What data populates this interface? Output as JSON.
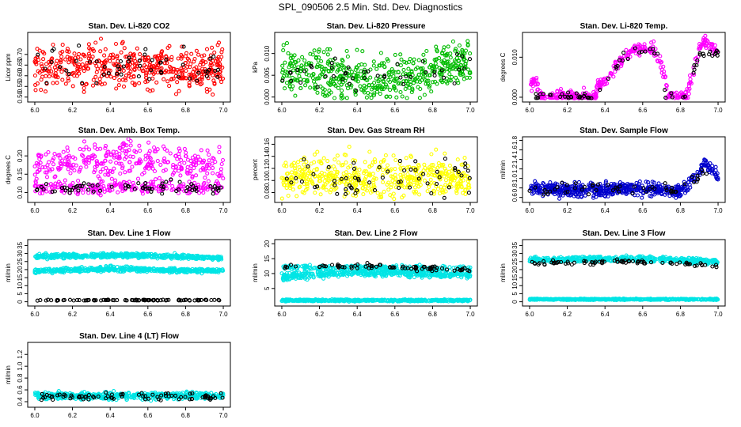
{
  "figure": {
    "title": "SPL_090506  2.5 Min. Std. Dev. Diagnostics"
  },
  "colors": {
    "red": "#ff0000",
    "green": "#00bb00",
    "magenta": "#ff00ff",
    "yellow": "#ffff00",
    "blue": "#0000cc",
    "cyan": "#00e5e5",
    "black": "#000000"
  },
  "chart_data": [
    {
      "type": "scatter",
      "title": "Stan. Dev. Li-820 CO2",
      "ylabel": "Licor ppm",
      "xlim": [
        6.0,
        7.0
      ],
      "ylim": [
        0.49,
        0.79
      ],
      "xticks": [
        "6.0",
        "6.2",
        "6.4",
        "6.6",
        "6.8",
        "7.0"
      ],
      "yticks": [
        "0.50",
        "0.55",
        "0.60",
        "0.65",
        "0.70"
      ],
      "color": "red",
      "profile": [
        [
          6.0,
          0.64
        ],
        [
          7.0,
          0.64
        ]
      ],
      "spread": 0.05,
      "points": 480,
      "black_profile": [
        [
          6.0,
          0.63
        ],
        [
          7.0,
          0.63
        ]
      ],
      "black_spread": 0.045,
      "black_points": 55
    },
    {
      "type": "scatter",
      "title": "Stan. Dev. Li-820 Pressure",
      "ylabel": "kPa",
      "xlim": [
        6.0,
        7.0
      ],
      "ylim": [
        -0.0005,
        0.0142
      ],
      "xticks": [
        "6.0",
        "6.2",
        "6.4",
        "6.6",
        "6.8",
        "7.0"
      ],
      "yticks": [
        "0.000",
        "0.005",
        "0.010"
      ],
      "color": "green",
      "profile": [
        [
          6.0,
          0.006
        ],
        [
          6.3,
          0.005
        ],
        [
          6.5,
          0.0035
        ],
        [
          6.7,
          0.005
        ],
        [
          6.85,
          0.0075
        ],
        [
          7.0,
          0.008
        ]
      ],
      "spread": 0.0026,
      "points": 520,
      "black_profile": [
        [
          6.0,
          0.006
        ],
        [
          6.4,
          0.005
        ],
        [
          6.7,
          0.005
        ],
        [
          7.0,
          0.008
        ]
      ],
      "black_spread": 0.002,
      "black_points": 45
    },
    {
      "type": "scatter",
      "title": "Stan. Dev. Li-820 Temp.",
      "ylabel": "degrees C",
      "xlim": [
        6.0,
        7.0
      ],
      "ylim": [
        -0.0005,
        0.0155
      ],
      "xticks": [
        "6.0",
        "6.2",
        "6.4",
        "6.6",
        "6.8",
        "7.0"
      ],
      "yticks": [
        "0.000",
        "0.010"
      ],
      "color": "magenta",
      "profile": [
        [
          6.0,
          0.0035
        ],
        [
          6.04,
          0.0035
        ],
        [
          6.05,
          0.0
        ],
        [
          6.35,
          0.0
        ],
        [
          6.36,
          0.003
        ],
        [
          6.42,
          0.005
        ],
        [
          6.5,
          0.01
        ],
        [
          6.54,
          0.012
        ],
        [
          6.66,
          0.012
        ],
        [
          6.69,
          0.009
        ],
        [
          6.72,
          0.005
        ],
        [
          6.73,
          0.0
        ],
        [
          6.83,
          0.0
        ],
        [
          6.86,
          0.005
        ],
        [
          6.9,
          0.012
        ],
        [
          6.93,
          0.014
        ],
        [
          7.0,
          0.011
        ]
      ],
      "spread": 0.0008,
      "points": 420,
      "black_profile": [
        [
          6.0,
          0.0
        ],
        [
          6.05,
          0.0
        ],
        [
          6.35,
          0.0
        ],
        [
          6.45,
          0.007
        ],
        [
          6.55,
          0.012
        ],
        [
          6.65,
          0.012
        ],
        [
          6.7,
          0.008
        ],
        [
          6.72,
          0.0
        ],
        [
          6.83,
          0.0
        ],
        [
          6.9,
          0.011
        ],
        [
          7.0,
          0.011
        ]
      ],
      "black_spread": 0.0006,
      "black_points": 70
    },
    {
      "type": "scatter",
      "title": "Stan. Dev. Amb. Box Temp.",
      "ylabel": "degrees C",
      "xlim": [
        6.0,
        7.0
      ],
      "ylim": [
        0.08,
        0.245
      ],
      "xticks": [
        "6.0",
        "6.2",
        "6.4",
        "6.6",
        "6.8",
        "7.0"
      ],
      "yticks": [
        "0.10",
        "0.15",
        "0.20"
      ],
      "color": "magenta",
      "profile": [
        [
          6.0,
          0.175
        ],
        [
          6.3,
          0.185
        ],
        [
          6.5,
          0.19
        ],
        [
          6.8,
          0.18
        ],
        [
          7.0,
          0.165
        ]
      ],
      "spread": 0.025,
      "points": 340,
      "profile2": [
        [
          6.0,
          0.11
        ],
        [
          6.5,
          0.115
        ],
        [
          7.0,
          0.112
        ]
      ],
      "spread2": 0.008,
      "points2": 220,
      "black_profile": [
        [
          6.0,
          0.11
        ],
        [
          6.5,
          0.115
        ],
        [
          7.0,
          0.11
        ]
      ],
      "black_spread": 0.008,
      "black_points": 70
    },
    {
      "type": "scatter",
      "title": "Stan. Dev. Gas Stream RH",
      "ylabel": "percent",
      "xlim": [
        6.0,
        7.0
      ],
      "ylim": [
        0.068,
        0.168
      ],
      "xticks": [
        "6.0",
        "6.2",
        "6.4",
        "6.6",
        "6.8",
        "7.0"
      ],
      "yticks": [
        "0.08",
        "0.10",
        "0.12",
        "0.14",
        "0.16"
      ],
      "color": "yellow",
      "profile": [
        [
          6.0,
          0.105
        ],
        [
          7.0,
          0.105
        ]
      ],
      "spread": 0.017,
      "points": 520,
      "black_profile": [
        [
          6.0,
          0.103
        ],
        [
          7.0,
          0.103
        ]
      ],
      "black_spread": 0.016,
      "black_points": 60
    },
    {
      "type": "scatter",
      "title": "Stan. Dev. Sample Flow",
      "ylabel": "ml/min",
      "xlim": [
        6.0,
        7.0
      ],
      "ylim": [
        0.55,
        1.82
      ],
      "xticks": [
        "6.0",
        "6.2",
        "6.4",
        "6.6",
        "6.8",
        "7.0"
      ],
      "yticks": [
        "0.6",
        "0.8",
        "1.0",
        "1.2",
        "1.4",
        "1.6",
        "1.8"
      ],
      "color": "blue",
      "profile": [
        [
          6.0,
          0.8
        ],
        [
          6.3,
          0.74
        ],
        [
          6.5,
          0.8
        ],
        [
          6.7,
          0.76
        ],
        [
          6.8,
          0.72
        ],
        [
          6.87,
          1.0
        ],
        [
          6.93,
          1.3
        ],
        [
          6.97,
          1.2
        ],
        [
          7.0,
          1.0
        ]
      ],
      "spread": 0.07,
      "points": 560,
      "black_profile": [
        [
          6.0,
          0.8
        ],
        [
          6.5,
          0.8
        ],
        [
          6.8,
          0.75
        ],
        [
          6.95,
          1.2
        ],
        [
          7.0,
          1.05
        ]
      ],
      "black_spread": 0.06,
      "black_points": 55
    },
    {
      "type": "scatter",
      "title": "Stan. Dev. Line 1 Flow",
      "ylabel": "ml/min",
      "xlim": [
        6.0,
        7.0
      ],
      "ylim": [
        -1,
        37
      ],
      "xticks": [
        "6.0",
        "6.2",
        "6.4",
        "6.6",
        "6.8",
        "7.0"
      ],
      "yticks": [
        "0",
        "5",
        "10",
        "15",
        "20",
        "25",
        "30",
        "35"
      ],
      "color": "cyan",
      "profile": [
        [
          6.0,
          28
        ],
        [
          6.5,
          29
        ],
        [
          7.0,
          27
        ]
      ],
      "spread": 0.7,
      "points": 500,
      "profile2": [
        [
          6.0,
          19
        ],
        [
          6.4,
          20.5
        ],
        [
          7.0,
          19
        ]
      ],
      "spread2": 0.7,
      "points2": 500,
      "black_profile": [
        [
          6.0,
          1
        ],
        [
          7.0,
          1
        ]
      ],
      "black_spread": 0.15,
      "black_points": 90
    },
    {
      "type": "scatter",
      "title": "Stan. Dev. Line 2 Flow",
      "ylabel": "ml/min",
      "xlim": [
        6.0,
        7.0
      ],
      "ylim": [
        0,
        20.5
      ],
      "xticks": [
        "6.0",
        "6.2",
        "6.4",
        "6.6",
        "6.8",
        "7.0"
      ],
      "yticks": [
        "5",
        "10",
        "15",
        "20"
      ],
      "color": "cyan",
      "profile": [
        [
          6.0,
          9
        ],
        [
          6.4,
          10.5
        ],
        [
          7.0,
          9.5
        ]
      ],
      "spread": 0.6,
      "points": 480,
      "profile2": [
        [
          6.0,
          12
        ],
        [
          7.0,
          12
        ]
      ],
      "spread2": 0.4,
      "points2": 200,
      "profile3": [
        [
          6.0,
          1
        ],
        [
          7.0,
          1
        ]
      ],
      "spread3": 0.15,
      "points3": 480,
      "black_profile": [
        [
          6.0,
          12
        ],
        [
          6.5,
          12.5
        ],
        [
          7.0,
          11
        ]
      ],
      "black_spread": 0.4,
      "black_points": 75
    },
    {
      "type": "scatter",
      "title": "Stan. Dev. Line 3 Flow",
      "ylabel": "ml/min",
      "xlim": [
        6.0,
        7.0
      ],
      "ylim": [
        -1,
        37
      ],
      "xticks": [
        "6.0",
        "6.2",
        "6.4",
        "6.6",
        "6.8",
        "7.0"
      ],
      "yticks": [
        "0",
        "5",
        "10",
        "15",
        "20",
        "25",
        "30",
        "35"
      ],
      "color": "cyan",
      "profile": [
        [
          6.0,
          26
        ],
        [
          6.5,
          27
        ],
        [
          7.0,
          25
        ]
      ],
      "spread": 0.9,
      "points": 500,
      "profile3": [
        [
          6.0,
          1.5
        ],
        [
          7.0,
          1.5
        ]
      ],
      "spread3": 0.2,
      "points3": 480,
      "black_profile": [
        [
          6.0,
          24
        ],
        [
          6.5,
          25
        ],
        [
          7.0,
          22
        ]
      ],
      "black_spread": 0.7,
      "black_points": 80
    },
    {
      "type": "scatter",
      "title": "Stan. Dev. Line 4 (LT) Flow",
      "ylabel": "ml/min",
      "xlim": [
        6.0,
        7.0
      ],
      "ylim": [
        0.35,
        1.36
      ],
      "xticks": [
        "6.0",
        "6.2",
        "6.4",
        "6.6",
        "6.8",
        "7.0"
      ],
      "yticks": [
        "0.4",
        "0.6",
        "0.8",
        "1.0",
        "1.2"
      ],
      "color": "cyan",
      "profile": [
        [
          6.0,
          0.5
        ],
        [
          7.0,
          0.5
        ]
      ],
      "spread": 0.03,
      "points": 500,
      "black_profile": [
        [
          6.0,
          0.49
        ],
        [
          7.0,
          0.49
        ]
      ],
      "black_spread": 0.03,
      "black_points": 80
    }
  ]
}
